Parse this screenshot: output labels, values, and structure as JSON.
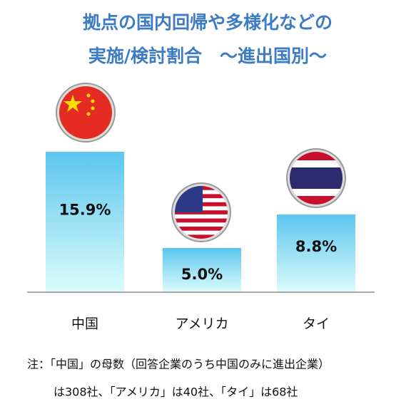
{
  "chart_data": {
    "type": "bar",
    "title": [
      "拠点の国内回帰や多様化などの",
      "実施/検討割合　～進出国別～"
    ],
    "categories": [
      "中国",
      "アメリカ",
      "タイ"
    ],
    "values": [
      15.9,
      5.0,
      8.8
    ],
    "value_labels": [
      "15.9%",
      "5.0%",
      "8.8%"
    ],
    "color": [
      "#5bc6ee",
      "#dcfcfb"
    ],
    "note": [
      "注：「中国」の母数（回答企業のうち中国のみに進出企業）",
      "は308社、「アメリカ」は40社、「タイ」は68社"
    ]
  }
}
